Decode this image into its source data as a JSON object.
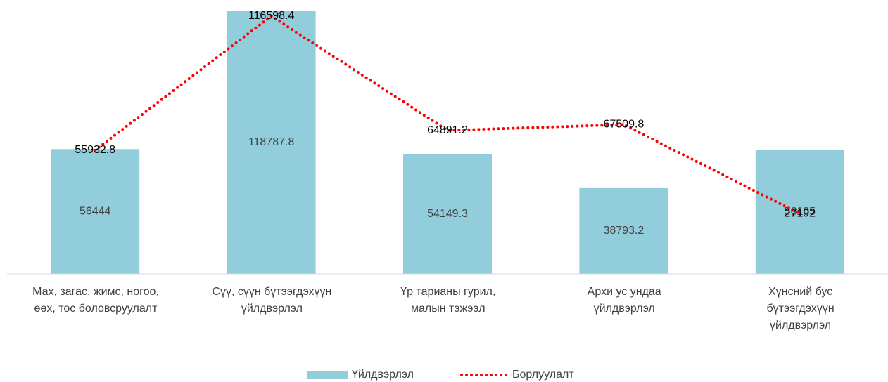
{
  "chart_data": {
    "type": "bar",
    "categories": [
      "Мах, загас, жимс, ногоо,\nөөх, тос боловсруулалт",
      "Сүү, сүүн бүтээгдэхүүн\nүйлдвэрлэл",
      "Үр тарианы гурил,\nмалын тэжээл",
      "Архи ус ундаа\nүйлдвэрлэл",
      "Хүнсний бус\nбүтээгдэхүүн\nүйлдвэрлэл"
    ],
    "series": [
      {
        "name": "Үйлдвэрлэл",
        "type": "bar",
        "color": "#92cddc",
        "values": [
          56444,
          118787.8,
          54149.3,
          38793.2,
          56105
        ]
      },
      {
        "name": "Борлуулалт",
        "type": "line",
        "color": "#ff0000",
        "values": [
          55932.8,
          116598.4,
          64891.2,
          67509.8,
          27192
        ]
      }
    ],
    "ylim": [
      0,
      118787.8
    ],
    "legend": "bottom"
  }
}
